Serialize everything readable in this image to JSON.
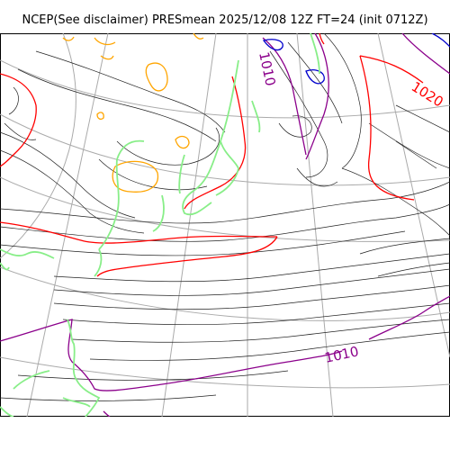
{
  "title": "NCEP(See disclaimer) PRESmean 2025/12/08 12Z FT=24 (init 0712Z)",
  "contour_labels": [
    "1010",
    "1020",
    "1010"
  ],
  "colors": {
    "isobar": "#222222",
    "contour_1000": "#0000cc",
    "contour_1010": "#8b008b",
    "contour_1020": "#ff0000",
    "contour_1030": "#ffa500",
    "coastline": "#88ee88",
    "graticule": "#aaaaaa"
  }
}
